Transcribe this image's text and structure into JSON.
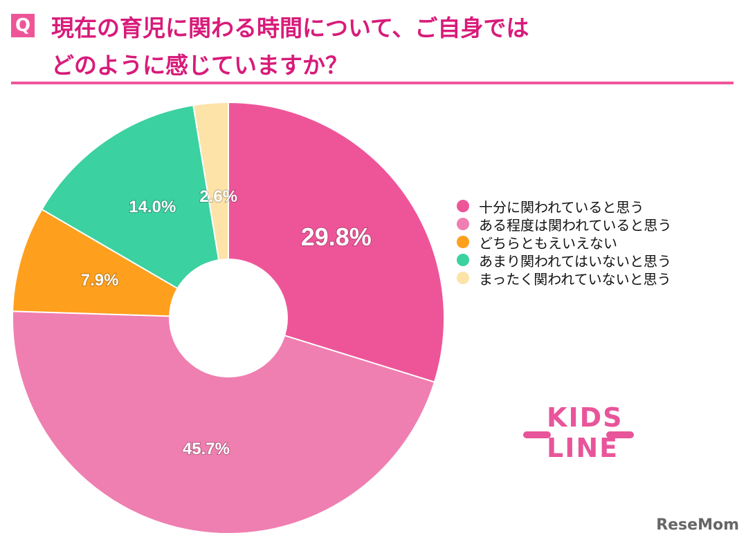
{
  "header": {
    "q_badge": "Q",
    "title_line1": "現在の育児に関わる時間について、ご自身では",
    "title_line2": "どのように感じていますか？"
  },
  "chart_data": {
    "type": "pie",
    "donut": true,
    "title": "現在の育児に関わる時間について、ご自身ではどのように感じていますか？",
    "categories": [
      "十分に関われていると思う",
      "ある程度は関われていると思う",
      "どちらともえいえない",
      "あまり関われてはいないと思う",
      "まったく関われていないと思う"
    ],
    "values": [
      29.8,
      45.7,
      7.9,
      14.0,
      2.6
    ],
    "labels": [
      "29.8%",
      "45.7%",
      "7.9%",
      "14.0%",
      "2.6%"
    ],
    "colors": [
      "#ee5599",
      "#ef7fb0",
      "#ff9f1e",
      "#3bd1a0",
      "#fde3a7"
    ],
    "legend_position": "right"
  },
  "logos": {
    "kidsline": "KIDS LINE",
    "resemom": "ReseMom"
  }
}
